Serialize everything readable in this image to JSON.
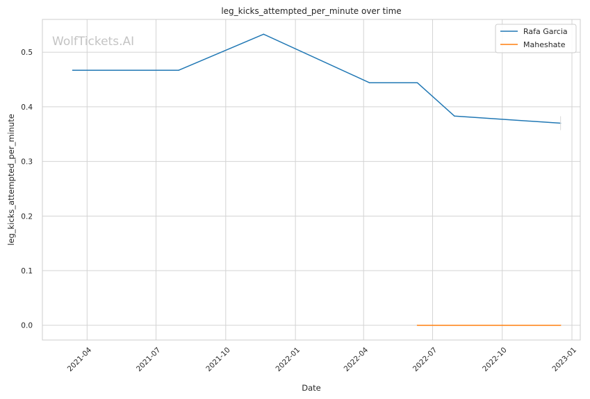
{
  "chart_data": {
    "type": "line",
    "title": "leg_kicks_attempted_per_minute over time",
    "xlabel": "Date",
    "ylabel": "leg_kicks_attempted_per_minute",
    "watermark": "WolfTickets.AI",
    "grid": true,
    "legend_position": "top-right",
    "xlim": [
      "2021-02-01",
      "2023-01-12"
    ],
    "ylim": [
      -0.027,
      0.56
    ],
    "x_ticks": [
      "2021-04-01",
      "2021-07-01",
      "2021-10-01",
      "2022-01-01",
      "2022-04-01",
      "2022-07-01",
      "2022-10-01",
      "2023-01-01"
    ],
    "x_tick_labels": [
      "2021-04",
      "2021-07",
      "2021-10",
      "2022-01",
      "2022-04",
      "2022-07",
      "2022-10",
      "2023-01"
    ],
    "y_ticks": [
      0.0,
      0.1,
      0.2,
      0.3,
      0.4,
      0.5
    ],
    "y_tick_labels": [
      "0.0",
      "0.1",
      "0.2",
      "0.3",
      "0.4",
      "0.5"
    ],
    "series": [
      {
        "name": "Rafa Garcia",
        "color": "#1f77b4",
        "x": [
          "2021-03-13",
          "2021-07-31",
          "2021-11-20",
          "2022-04-09",
          "2022-06-11",
          "2022-07-30",
          "2022-12-17"
        ],
        "y": [
          0.467,
          0.467,
          0.533,
          0.444,
          0.444,
          0.383,
          0.37
        ]
      },
      {
        "name": "Maheshate",
        "color": "#ff7f0e",
        "x": [
          "2022-06-11",
          "2022-12-17"
        ],
        "y": [
          0.0,
          0.0
        ]
      }
    ]
  }
}
